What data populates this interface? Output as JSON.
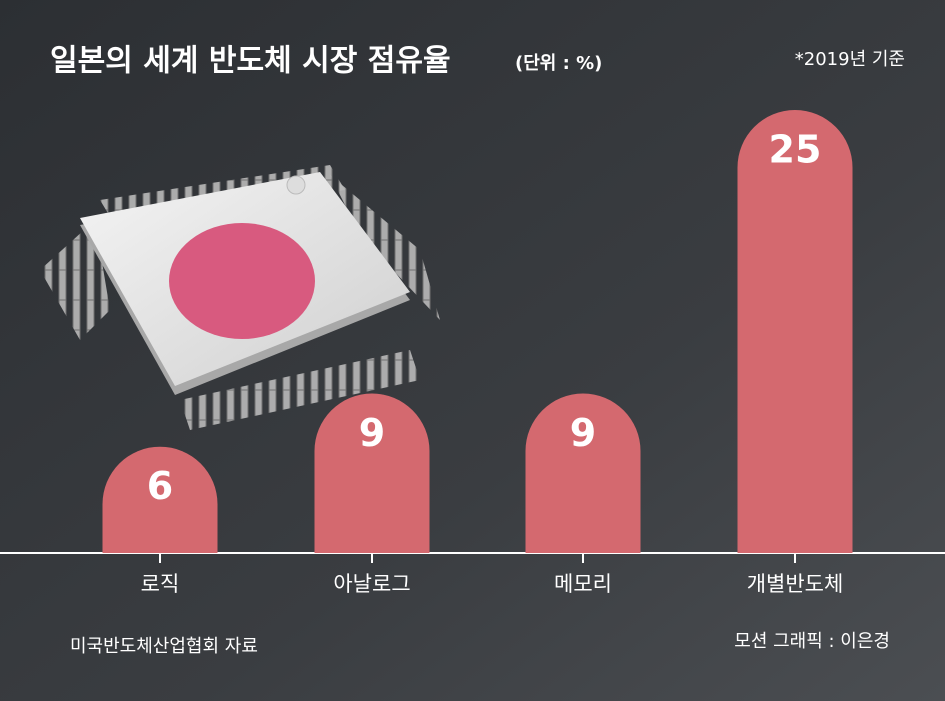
{
  "chart_data": {
    "type": "bar",
    "title": "일본의 세계 반도체 시장 점유율",
    "unit": "(단위 : %)",
    "note": "*2019년 기준",
    "categories": [
      "로직",
      "아날로그",
      "메모리",
      "개별반도체"
    ],
    "values": [
      6,
      9,
      9,
      25
    ],
    "color": "#d4696f",
    "source": "미국반도체산업협회 자료",
    "credit": "모션 그래픽 : 이은경"
  }
}
